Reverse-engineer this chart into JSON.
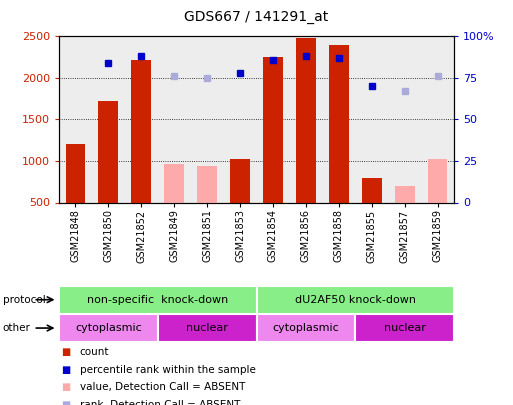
{
  "title": "GDS667 / 141291_at",
  "samples": [
    "GSM21848",
    "GSM21850",
    "GSM21852",
    "GSM21849",
    "GSM21851",
    "GSM21853",
    "GSM21854",
    "GSM21856",
    "GSM21858",
    "GSM21855",
    "GSM21857",
    "GSM21859"
  ],
  "count_values": [
    1200,
    1720,
    2220,
    null,
    null,
    1020,
    2250,
    2480,
    2400,
    800,
    null,
    null
  ],
  "count_absent": [
    null,
    null,
    null,
    960,
    940,
    null,
    null,
    null,
    null,
    null,
    700,
    1020
  ],
  "rank_values": [
    null,
    84,
    88,
    null,
    null,
    78,
    86,
    88,
    87,
    70,
    null,
    null
  ],
  "rank_absent": [
    null,
    null,
    null,
    76,
    75,
    null,
    null,
    null,
    null,
    null,
    67,
    76
  ],
  "ylim_left": [
    500,
    2500
  ],
  "ylim_right": [
    0,
    100
  ],
  "left_ticks": [
    500,
    1000,
    1500,
    2000,
    2500
  ],
  "right_ticks": [
    0,
    25,
    50,
    75,
    100
  ],
  "bar_color_present": "#cc2200",
  "bar_color_absent": "#ffaaaa",
  "dot_color_present": "#0000cc",
  "dot_color_absent": "#aaaadd",
  "protocol_labels": [
    "non-specific  knock-down",
    "dU2AF50 knock-down"
  ],
  "protocol_ranges": [
    [
      0,
      6
    ],
    [
      6,
      12
    ]
  ],
  "protocol_color": "#88ee88",
  "other_labels": [
    "cytoplasmic",
    "nuclear",
    "cytoplasmic",
    "nuclear"
  ],
  "other_ranges": [
    [
      0,
      3
    ],
    [
      3,
      6
    ],
    [
      6,
      9
    ],
    [
      9,
      12
    ]
  ],
  "other_cytoplasmic_color": "#ee88ee",
  "other_nuclear_color": "#cc22cc",
  "bg_color": "#cccccc",
  "legend_items": [
    "count",
    "percentile rank within the sample",
    "value, Detection Call = ABSENT",
    "rank, Detection Call = ABSENT"
  ],
  "legend_colors": [
    "#cc2200",
    "#0000cc",
    "#ffaaaa",
    "#aaaadd"
  ],
  "fig_width": 5.13,
  "fig_height": 4.05,
  "dpi": 100
}
